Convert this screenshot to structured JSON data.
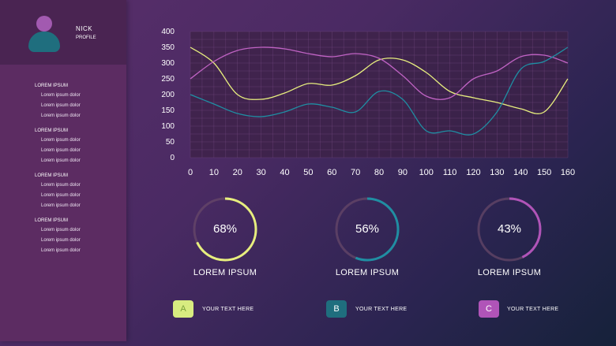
{
  "sidebar": {
    "profile": {
      "name": "NICK",
      "subtitle": "PROFILE"
    },
    "groups": [
      {
        "title": "LOREM IPSUM",
        "items": [
          "Lorem ipsum dolor",
          "Lorem ipsum dolor",
          "Lorem ipsum dolor"
        ]
      },
      {
        "title": "LOREM IPSUM",
        "items": [
          "Lorem ipsum dolor",
          "Lorem ipsum dolor",
          "Lorem ipsum dolor"
        ]
      },
      {
        "title": "LOREM IPSUM",
        "items": [
          "Lorem ipsum dolor",
          "Lorem ipsum dolor",
          "Lorem ipsum dolor"
        ]
      },
      {
        "title": "LOREM IPSUM",
        "items": [
          "Lorem ipsum dolor",
          "Lorem ipsum dolor",
          "Lorem ipsum dolor"
        ]
      }
    ]
  },
  "chart_data": {
    "type": "line",
    "x": [
      0,
      10,
      20,
      30,
      40,
      50,
      60,
      70,
      80,
      90,
      100,
      110,
      120,
      130,
      140,
      150,
      160
    ],
    "xticks": [
      "0",
      "10",
      "20",
      "30",
      "40",
      "50",
      "60",
      "70",
      "80",
      "90",
      "100",
      "110",
      "120",
      "130",
      "140",
      "150",
      "160"
    ],
    "yticks": [
      "0",
      "50",
      "100",
      "150",
      "200",
      "250",
      "300",
      "350",
      "400"
    ],
    "xlim": [
      0,
      160
    ],
    "ylim": [
      0,
      400
    ],
    "grid": true,
    "series": [
      {
        "color": "#e7ee7e",
        "values": [
          350,
          300,
          200,
          185,
          205,
          235,
          230,
          260,
          310,
          310,
          270,
          210,
          190,
          175,
          155,
          145,
          250
        ]
      },
      {
        "color": "#c063c4",
        "values": [
          250,
          305,
          340,
          350,
          345,
          330,
          320,
          330,
          315,
          260,
          195,
          190,
          250,
          275,
          320,
          325,
          300
        ]
      },
      {
        "color": "#1f8ea3",
        "values": [
          200,
          170,
          140,
          130,
          145,
          170,
          160,
          145,
          210,
          185,
          85,
          85,
          75,
          145,
          280,
          305,
          350
        ]
      }
    ]
  },
  "donuts": [
    {
      "value": 68,
      "display": "68%",
      "label": "LOREM IPSUM",
      "color": "#e7ee7e"
    },
    {
      "value": 56,
      "display": "56%",
      "label": "LOREM IPSUM",
      "color": "#1f8ea3"
    },
    {
      "value": 43,
      "display": "43%",
      "label": "LOREM IPSUM",
      "color": "#b054b8"
    }
  ],
  "legend": [
    {
      "letter": "A",
      "text": "YOUR TEXT HERE",
      "color": "#d8ec80",
      "text_color": "#7aa23a"
    },
    {
      "letter": "B",
      "text": "YOUR TEXT HERE",
      "color": "#1f6e7e",
      "text_color": "#ffffff"
    },
    {
      "letter": "C",
      "text": "YOUR TEXT HERE",
      "color": "#b054b8",
      "text_color": "#ffffff"
    }
  ]
}
